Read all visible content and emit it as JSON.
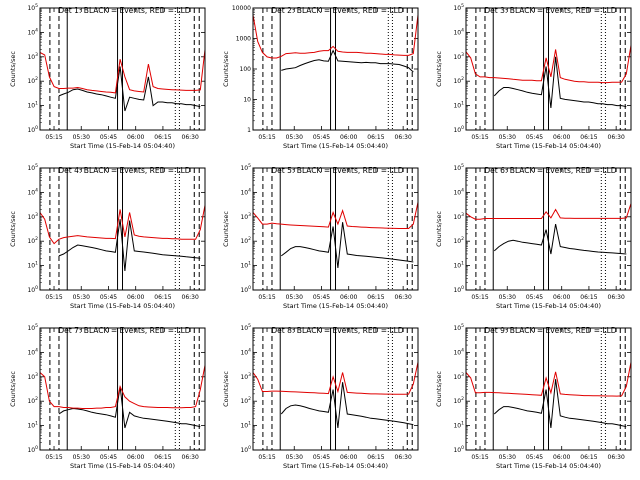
{
  "colors": {
    "events": "#000000",
    "lld": "#e00000",
    "axis": "#000000",
    "background": "#ffffff"
  },
  "xlabel": "Start Time (15-Feb-14 05:04:40)",
  "ylabel": "Counts/sec",
  "x_tick_labels": [
    "05:15",
    "05:30",
    "05:45",
    "06:00",
    "06:15",
    "06:30"
  ],
  "chart_data": [
    {
      "type": "line",
      "title": "Det 1: BLACK = Events, RED = LLD",
      "ylim": [
        1,
        100000
      ],
      "yticks": [
        "10^0",
        "10^1",
        "10^2",
        "10^3",
        "10^4",
        "10^5"
      ],
      "series": [
        {
          "name": "Events",
          "color": "#000000",
          "values": [
            0,
            0,
            0,
            0,
            25,
            30,
            35,
            45,
            48,
            42,
            36,
            33,
            30,
            28,
            25,
            22,
            20,
            400,
            6,
            22,
            20,
            18,
            17,
            150,
            10,
            14,
            14,
            13,
            13,
            12,
            12,
            11,
            11,
            10,
            9,
            0
          ]
        },
        {
          "name": "LLD",
          "color": "#e00000",
          "values": [
            1500,
            1200,
            150,
            60,
            50,
            50,
            52,
            52,
            55,
            50,
            45,
            42,
            40,
            38,
            36,
            35,
            33,
            800,
            150,
            45,
            40,
            38,
            36,
            500,
            60,
            50,
            48,
            46,
            45,
            44,
            43,
            42,
            42,
            42,
            44,
            2000
          ]
        }
      ]
    },
    {
      "type": "line",
      "title": "Det 2: BLACK = Events, RED = LLD",
      "ylim": [
        1,
        10000
      ],
      "yticks": [
        "1",
        "10",
        "100",
        "1000",
        "10000"
      ],
      "series": [
        {
          "name": "Events",
          "color": "#000000",
          "values": [
            0,
            0,
            0,
            0,
            0,
            0,
            90,
            100,
            105,
            110,
            130,
            150,
            170,
            190,
            200,
            185,
            180,
            400,
            185,
            180,
            175,
            170,
            165,
            160,
            165,
            160,
            160,
            150,
            150,
            150,
            145,
            140,
            125,
            110,
            80,
            0
          ]
        },
        {
          "name": "LLD",
          "color": "#e00000",
          "values": [
            6000,
            800,
            350,
            250,
            230,
            230,
            260,
            320,
            330,
            340,
            330,
            330,
            340,
            350,
            380,
            400,
            400,
            550,
            380,
            360,
            350,
            350,
            350,
            340,
            330,
            330,
            320,
            310,
            300,
            300,
            290,
            285,
            280,
            280,
            320,
            6000
          ]
        }
      ]
    },
    {
      "type": "line",
      "title": "Det 3: BLACK = Events, RED = LLD",
      "ylim": [
        1,
        100000
      ],
      "yticks": [
        "10^0",
        "10^1",
        "10^2",
        "10^3",
        "10^4",
        "10^5"
      ],
      "series": [
        {
          "name": "Events",
          "color": "#000000",
          "values": [
            0,
            0,
            0,
            0,
            0,
            0,
            25,
            40,
            55,
            55,
            50,
            45,
            40,
            35,
            32,
            30,
            28,
            400,
            8,
            1000,
            20,
            18,
            17,
            16,
            15,
            14,
            14,
            13,
            12,
            12,
            11,
            11,
            10,
            10,
            9,
            0
          ]
        },
        {
          "name": "LLD",
          "color": "#e00000",
          "values": [
            1600,
            900,
            200,
            150,
            150,
            140,
            140,
            135,
            130,
            125,
            120,
            115,
            110,
            110,
            110,
            105,
            105,
            900,
            150,
            2000,
            140,
            120,
            110,
            100,
            95,
            95,
            90,
            90,
            90,
            88,
            88,
            90,
            90,
            92,
            200,
            3000
          ]
        }
      ]
    },
    {
      "type": "line",
      "title": "Det 4: BLACK = Events, RED = LLD",
      "ylim": [
        1,
        100000
      ],
      "yticks": [
        "10^0",
        "10^1",
        "10^2",
        "10^3",
        "10^4",
        "10^5"
      ],
      "series": [
        {
          "name": "Events",
          "color": "#000000",
          "values": [
            0,
            0,
            0,
            0,
            25,
            30,
            40,
            55,
            70,
            65,
            60,
            55,
            50,
            45,
            40,
            38,
            35,
            800,
            6,
            700,
            40,
            38,
            36,
            34,
            32,
            30,
            28,
            27,
            26,
            25,
            24,
            23,
            22,
            21,
            20,
            0
          ]
        },
        {
          "name": "LLD",
          "color": "#e00000",
          "values": [
            1500,
            800,
            150,
            80,
            120,
            140,
            150,
            160,
            170,
            160,
            150,
            145,
            140,
            135,
            130,
            130,
            128,
            2000,
            150,
            1500,
            180,
            160,
            150,
            145,
            140,
            135,
            130,
            130,
            125,
            125,
            120,
            120,
            120,
            120,
            300,
            3000
          ]
        }
      ]
    },
    {
      "type": "line",
      "title": "Det 5: BLACK = Events, RED = LLD",
      "ylim": [
        1,
        100000
      ],
      "yticks": [
        "10^0",
        "10^1",
        "10^2",
        "10^3",
        "10^4",
        "10^5"
      ],
      "series": [
        {
          "name": "Events",
          "color": "#000000",
          "values": [
            0,
            0,
            0,
            0,
            0,
            0,
            25,
            35,
            50,
            60,
            60,
            55,
            50,
            45,
            40,
            38,
            35,
            400,
            8,
            600,
            30,
            28,
            26,
            25,
            24,
            23,
            22,
            21,
            20,
            19,
            18,
            17,
            16,
            15,
            14,
            0
          ]
        },
        {
          "name": "LLD",
          "color": "#e00000",
          "values": [
            1500,
            900,
            500,
            500,
            550,
            520,
            500,
            480,
            460,
            450,
            440,
            430,
            420,
            410,
            400,
            390,
            380,
            1500,
            500,
            1800,
            420,
            400,
            390,
            380,
            370,
            360,
            355,
            350,
            345,
            340,
            335,
            330,
            330,
            330,
            500,
            4000
          ]
        }
      ]
    },
    {
      "type": "line",
      "title": "Det 6: BLACK = Events, RED = LLD",
      "ylim": [
        1,
        100000
      ],
      "yticks": [
        "10^0",
        "10^1",
        "10^2",
        "10^3",
        "10^4",
        "10^5"
      ],
      "series": [
        {
          "name": "Events",
          "color": "#000000",
          "values": [
            0,
            0,
            0,
            0,
            0,
            0,
            40,
            60,
            80,
            100,
            110,
            100,
            90,
            85,
            80,
            75,
            70,
            300,
            30,
            500,
            60,
            55,
            50,
            48,
            45,
            42,
            40,
            38,
            36,
            35,
            34,
            33,
            32,
            31,
            30,
            0
          ]
        },
        {
          "name": "LLD",
          "color": "#e00000",
          "values": [
            1400,
            1000,
            800,
            800,
            850,
            850,
            850,
            850,
            850,
            850,
            850,
            850,
            850,
            850,
            850,
            850,
            850,
            1600,
            900,
            2000,
            900,
            880,
            870,
            860,
            860,
            860,
            860,
            860,
            860,
            860,
            860,
            860,
            860,
            860,
            900,
            3500
          ]
        }
      ]
    },
    {
      "type": "line",
      "title": "Det 7: BLACK = Events, RED = LLD",
      "ylim": [
        1,
        100000
      ],
      "yticks": [
        "10^0",
        "10^1",
        "10^2",
        "10^3",
        "10^4",
        "10^5"
      ],
      "series": [
        {
          "name": "Events",
          "color": "#000000",
          "values": [
            0,
            0,
            0,
            0,
            30,
            40,
            45,
            50,
            48,
            45,
            40,
            35,
            32,
            30,
            28,
            25,
            22,
            400,
            8,
            35,
            25,
            22,
            20,
            19,
            18,
            17,
            16,
            15,
            14,
            13,
            12,
            12,
            11,
            10,
            9,
            0
          ]
        },
        {
          "name": "LLD",
          "color": "#e00000",
          "values": [
            1500,
            1000,
            100,
            60,
            60,
            55,
            55,
            52,
            52,
            50,
            50,
            50,
            52,
            52,
            55,
            55,
            60,
            400,
            150,
            100,
            80,
            65,
            60,
            58,
            56,
            55,
            55,
            55,
            54,
            54,
            54,
            55,
            55,
            60,
            300,
            3000
          ]
        }
      ]
    },
    {
      "type": "line",
      "title": "Det 8: BLACK = Events, RED = LLD",
      "ylim": [
        1,
        100000
      ],
      "yticks": [
        "10^0",
        "10^1",
        "10^2",
        "10^3",
        "10^4",
        "10^5"
      ],
      "series": [
        {
          "name": "Events",
          "color": "#000000",
          "values": [
            0,
            0,
            0,
            0,
            0,
            0,
            30,
            50,
            65,
            70,
            65,
            58,
            50,
            45,
            40,
            38,
            35,
            300,
            8,
            600,
            30,
            28,
            26,
            24,
            22,
            20,
            19,
            18,
            17,
            16,
            15,
            14,
            13,
            12,
            11,
            0
          ]
        },
        {
          "name": "LLD",
          "color": "#e00000",
          "values": [
            1500,
            800,
            250,
            250,
            260,
            260,
            255,
            250,
            245,
            240,
            235,
            230,
            225,
            220,
            215,
            210,
            205,
            1000,
            250,
            1500,
            230,
            220,
            215,
            210,
            205,
            200,
            200,
            198,
            196,
            195,
            194,
            193,
            192,
            195,
            500,
            4000
          ]
        }
      ]
    },
    {
      "type": "line",
      "title": "Det 9: BLACK = Events, RED = LLD",
      "ylim": [
        1,
        100000
      ],
      "yticks": [
        "10^0",
        "10^1",
        "10^2",
        "10^3",
        "10^4",
        "10^5"
      ],
      "series": [
        {
          "name": "Events",
          "color": "#000000",
          "values": [
            0,
            0,
            0,
            0,
            0,
            0,
            30,
            45,
            60,
            60,
            55,
            50,
            45,
            40,
            38,
            35,
            32,
            300,
            8,
            800,
            25,
            22,
            20,
            19,
            18,
            17,
            16,
            15,
            14,
            13,
            12,
            12,
            11,
            10,
            9,
            0
          ]
        },
        {
          "name": "LLD",
          "color": "#e00000",
          "values": [
            1500,
            900,
            220,
            220,
            230,
            230,
            225,
            220,
            215,
            210,
            205,
            200,
            195,
            190,
            185,
            180,
            175,
            900,
            220,
            1600,
            200,
            190,
            185,
            180,
            175,
            170,
            170,
            168,
            166,
            165,
            164,
            163,
            162,
            165,
            400,
            4000
          ]
        }
      ]
    }
  ]
}
